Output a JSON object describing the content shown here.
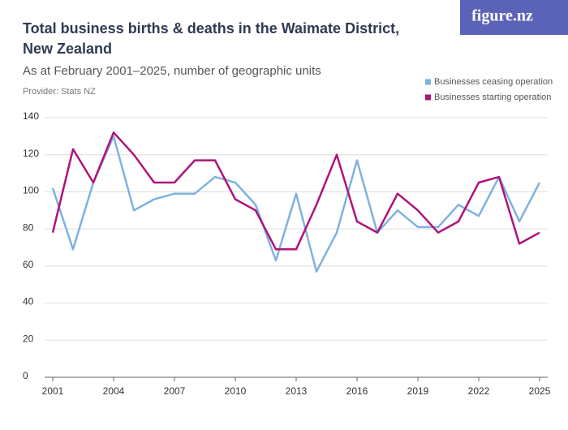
{
  "brand": "figure.nz",
  "chart_data": {
    "type": "line",
    "title": "Total business births & deaths in the Waimate District, New Zealand",
    "subtitle": "As at February 2001–2025, number of geographic units",
    "provider": "Provider: Stats NZ",
    "x": [
      2001,
      2002,
      2003,
      2004,
      2005,
      2006,
      2007,
      2008,
      2009,
      2010,
      2011,
      2012,
      2013,
      2014,
      2015,
      2016,
      2017,
      2018,
      2019,
      2020,
      2021,
      2022,
      2023,
      2024,
      2025
    ],
    "series": [
      {
        "name": "Businesses ceasing operation",
        "color": "#7fb2e0",
        "values": [
          102,
          69,
          105,
          130,
          90,
          96,
          99,
          99,
          108,
          105,
          93,
          63,
          99,
          57,
          78,
          117,
          78,
          90,
          81,
          81,
          93,
          87,
          108,
          84,
          105
        ]
      },
      {
        "name": "Businesses starting operation",
        "color": "#b0127a",
        "values": [
          78,
          123,
          105,
          132,
          120,
          105,
          105,
          117,
          117,
          96,
          90,
          69,
          69,
          93,
          120,
          84,
          78,
          99,
          90,
          78,
          84,
          105,
          108,
          72,
          78
        ]
      }
    ],
    "xlim": [
      2000.6,
      2025.4
    ],
    "xticks": [
      2001,
      2004,
      2007,
      2010,
      2013,
      2016,
      2019,
      2022,
      2025
    ],
    "ylim": [
      0,
      140
    ],
    "yticks": [
      0,
      20,
      40,
      60,
      80,
      100,
      120,
      140
    ],
    "grid": true,
    "legend": "top-right"
  }
}
